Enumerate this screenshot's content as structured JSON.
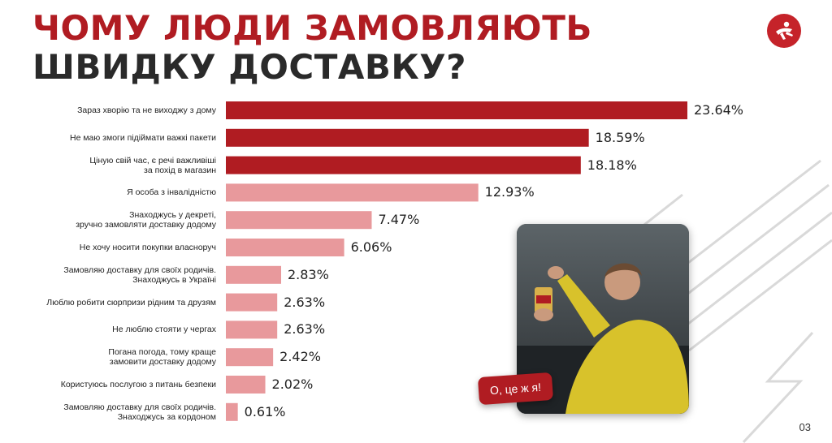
{
  "header": {
    "title_line1": "ЧОМУ ЛЮДИ ЗАМОВЛЯЮТЬ",
    "title_line2": "ШВИДКУ ДОСТАВКУ?"
  },
  "logo": {
    "icon": "running-person-logo-icon",
    "color": "#c5232a"
  },
  "photo": {
    "icon": "man-pointing-photo",
    "caption": "О, це ж я!"
  },
  "page_number": "03",
  "colors": {
    "dark_bar": "#b01c22",
    "light_bar": "#e8999c",
    "title_red": "#b01c22",
    "title_dark": "#2a2a2a"
  },
  "chart_data": {
    "type": "bar",
    "orientation": "horizontal",
    "title": "",
    "xlabel": "",
    "ylabel": "",
    "xlim": [
      0,
      23.64
    ],
    "grid": false,
    "categories": [
      "Зараз хворію та не виходжу з дому",
      "Не маю змоги підіймати важкі пакети",
      "Ціную свій час, є речі важливіші\nза похід в магазин",
      "Я особа з інвалідністю",
      "Знаходжусь у декреті,\nзручно замовляти доставку додому",
      "Не хочу носити покупки власноруч",
      "Замовляю доставку для своїх родичів.\nЗнаходжусь в Україні",
      "Люблю робити сюрпризи рідним та друзям",
      "Не люблю стояти у чергах",
      "Погана погода, тому краще\nзамовити доставку додому",
      "Користуюсь послугою з питань безпеки",
      "Замовляю доставку для своїх родичів.\nЗнаходжусь за кордоном"
    ],
    "values": [
      23.64,
      18.59,
      18.18,
      12.93,
      7.47,
      6.06,
      2.83,
      2.63,
      2.63,
      2.42,
      2.02,
      0.61
    ],
    "value_labels": [
      "23.64%",
      "18.59%",
      "18.18%",
      "12.93%",
      "7.47%",
      "6.06%",
      "2.83%",
      "2.63%",
      "2.63%",
      "2.42%",
      "2.02%",
      "0.61%"
    ],
    "highlight_count": 3
  }
}
